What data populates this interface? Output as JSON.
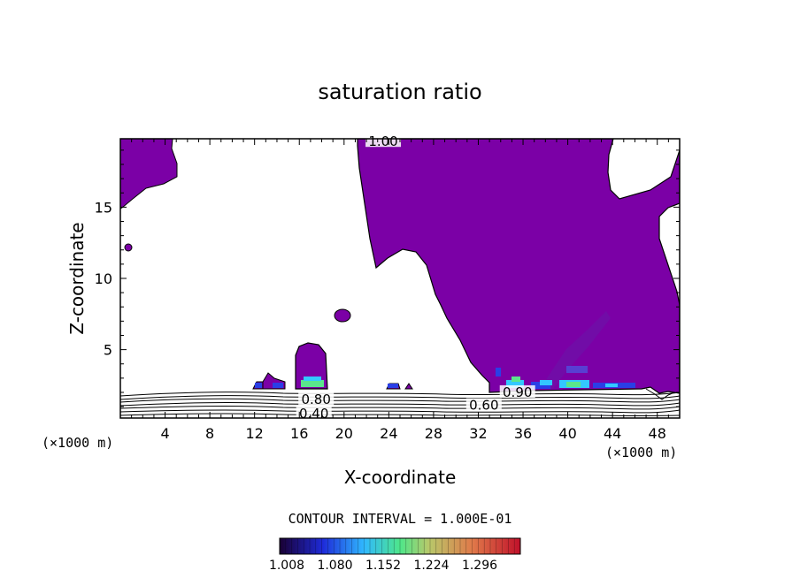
{
  "chart_data": {
    "type": "contour",
    "title": "saturation ratio",
    "xlabel": "X-coordinate",
    "ylabel": "Z-coordinate",
    "x_unit": "(×1000 m)",
    "x_unit_right": "(×1000 m)",
    "xlim": [
      0,
      50
    ],
    "ylim": [
      0.2,
      19.8
    ],
    "x_ticks": [
      4,
      8,
      12,
      16,
      20,
      24,
      28,
      32,
      36,
      40,
      44,
      48
    ],
    "y_ticks": [
      5,
      10,
      15
    ],
    "contour_labels": [
      {
        "text": "1.00",
        "x": 23.5,
        "y": 19.6
      },
      {
        "text": "0.80",
        "x": 17.5,
        "y": 1.5
      },
      {
        "text": "0.40",
        "x": 17.3,
        "y": 0.5
      },
      {
        "text": "0.90",
        "x": 35.5,
        "y": 2.0
      },
      {
        "text": "0.60",
        "x": 32.5,
        "y": 1.1
      }
    ],
    "contour_interval_text": "CONTOUR INTERVAL = 1.000E-01",
    "colorbar_labels": [
      "1.008",
      "1.080",
      "1.152",
      "1.224",
      "1.296"
    ],
    "colors": {
      "fill": "#7b00a6",
      "accent_light_blue": "#33c8ff",
      "accent_green": "#5ae68c",
      "accent_blue": "#2a3fe6"
    }
  }
}
